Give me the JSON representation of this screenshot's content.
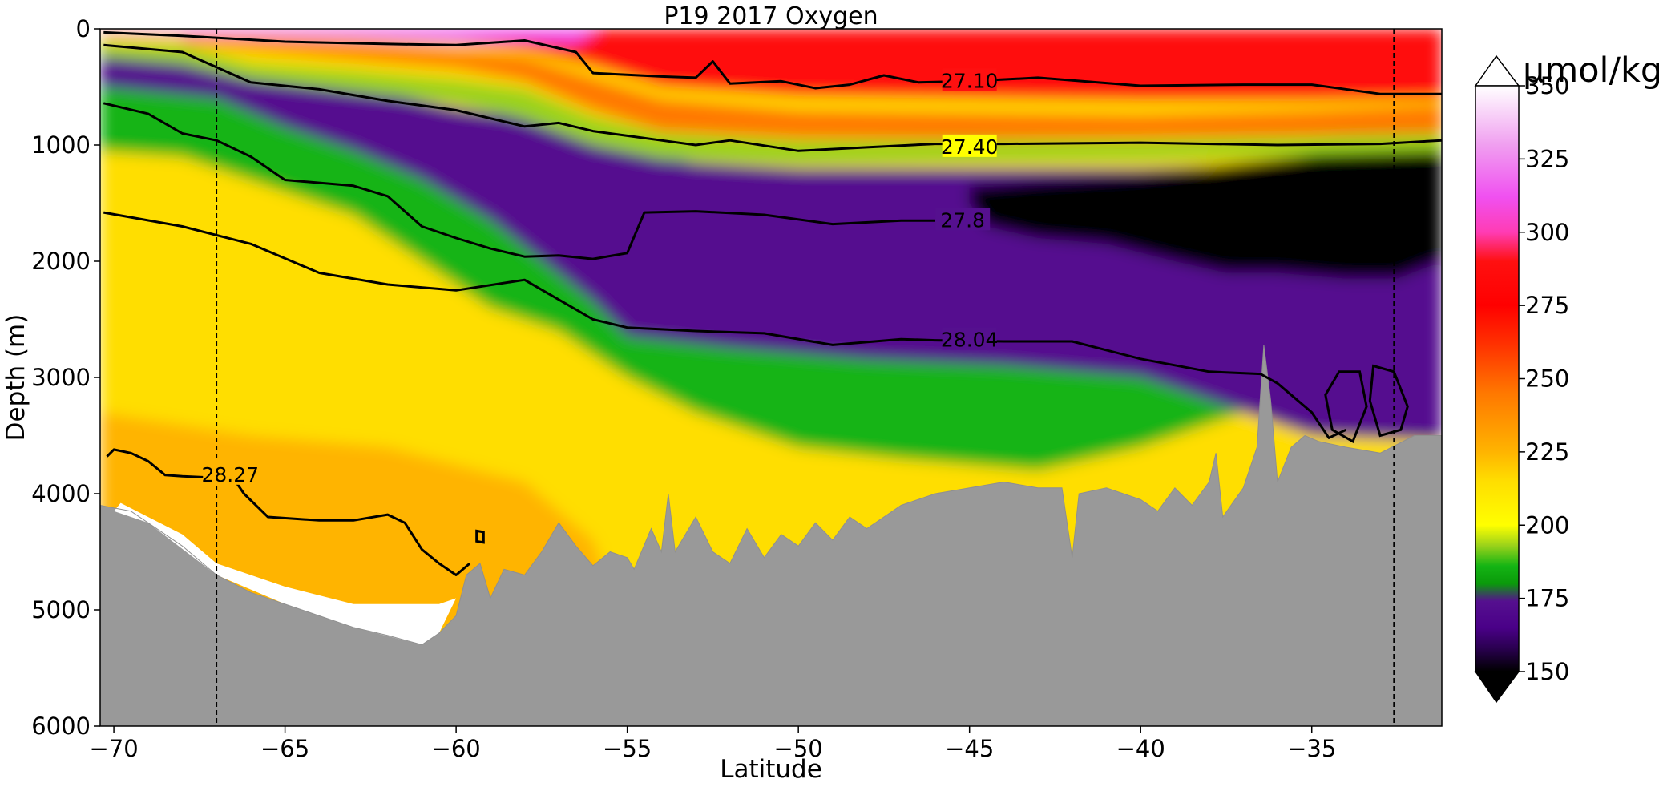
{
  "chart_data": {
    "type": "heatmap",
    "subtype": "ocean-section-contour",
    "title": "P19 2017 Oxygen",
    "xlabel": "Latitude",
    "ylabel": "Depth (m)",
    "xlim": [
      -70.4,
      -31.2
    ],
    "ylim": [
      6000,
      0
    ],
    "y_inverted": true,
    "xticks": [
      -70,
      -65,
      -60,
      -55,
      -50,
      -45,
      -40,
      -35
    ],
    "xtick_labels": [
      "−70",
      "−65",
      "−60",
      "−55",
      "−50",
      "−45",
      "−40",
      "−35"
    ],
    "yticks": [
      0,
      1000,
      2000,
      3000,
      4000,
      5000,
      6000
    ],
    "ytick_labels": [
      "0",
      "1000",
      "2000",
      "3000",
      "4000",
      "5000",
      "6000"
    ],
    "colorbar": {
      "unit": "µmol/kg",
      "range": [
        150,
        350
      ],
      "extend": "both",
      "ticks": [
        150,
        175,
        200,
        225,
        250,
        275,
        300,
        325,
        350
      ],
      "tick_labels": [
        "150",
        "175",
        "200",
        "225",
        "250",
        "275",
        "300",
        "325",
        "350"
      ],
      "stops": [
        {
          "value": 150,
          "color": "#000000"
        },
        {
          "value": 158,
          "color": "#2a0050"
        },
        {
          "value": 165,
          "color": "#4a0088"
        },
        {
          "value": 174,
          "color": "#55108f"
        },
        {
          "value": 180,
          "color": "#0a9a0a"
        },
        {
          "value": 186,
          "color": "#14b414"
        },
        {
          "value": 193,
          "color": "#9ad21a"
        },
        {
          "value": 200,
          "color": "#ffff00"
        },
        {
          "value": 215,
          "color": "#ffde00"
        },
        {
          "value": 225,
          "color": "#ffb400"
        },
        {
          "value": 245,
          "color": "#ff7800"
        },
        {
          "value": 262,
          "color": "#ff3000"
        },
        {
          "value": 275,
          "color": "#ff0000"
        },
        {
          "value": 290,
          "color": "#ff1010"
        },
        {
          "value": 300,
          "color": "#ff3cb4"
        },
        {
          "value": 312,
          "color": "#f050f0"
        },
        {
          "value": 330,
          "color": "#f0a0f0"
        },
        {
          "value": 350,
          "color": "#ffffff"
        }
      ]
    },
    "reference_lines": [
      {
        "type": "vertical",
        "x": -67.0,
        "style": "dashed"
      },
      {
        "type": "vertical",
        "x": -32.6,
        "style": "dashed"
      }
    ],
    "contours": [
      {
        "label": "27.10",
        "label_x": -45.0,
        "label_y": 450,
        "points": [
          [
            -70.3,
            30
          ],
          [
            -68,
            60
          ],
          [
            -65,
            110
          ],
          [
            -62,
            130
          ],
          [
            -60,
            140
          ],
          [
            -58,
            100
          ],
          [
            -56.5,
            200
          ],
          [
            -56,
            380
          ],
          [
            -54,
            410
          ],
          [
            -53,
            420
          ],
          [
            -52.5,
            280
          ],
          [
            -52,
            470
          ],
          [
            -50.5,
            450
          ],
          [
            -49.5,
            510
          ],
          [
            -48.5,
            480
          ],
          [
            -47.5,
            400
          ],
          [
            -46.5,
            460
          ],
          [
            -45,
            450
          ],
          [
            -43,
            420
          ],
          [
            -40,
            490
          ],
          [
            -37,
            480
          ],
          [
            -35,
            480
          ],
          [
            -33,
            560
          ],
          [
            -31.2,
            560
          ]
        ]
      },
      {
        "label": "27.40",
        "label_x": -45.0,
        "label_y": 1020,
        "points": [
          [
            -70.3,
            140
          ],
          [
            -68,
            200
          ],
          [
            -66,
            460
          ],
          [
            -64,
            520
          ],
          [
            -62,
            620
          ],
          [
            -60,
            700
          ],
          [
            -58,
            840
          ],
          [
            -57,
            810
          ],
          [
            -56,
            880
          ],
          [
            -55,
            920
          ],
          [
            -54,
            960
          ],
          [
            -53,
            1000
          ],
          [
            -52,
            960
          ],
          [
            -50,
            1050
          ],
          [
            -48,
            1020
          ],
          [
            -46,
            990
          ],
          [
            -44,
            990
          ],
          [
            -40,
            980
          ],
          [
            -36,
            1000
          ],
          [
            -33,
            990
          ],
          [
            -31.2,
            960
          ]
        ]
      },
      {
        "label": "27.8",
        "label_x": -45.2,
        "label_y": 1650,
        "points": [
          [
            -70.3,
            640
          ],
          [
            -69,
            730
          ],
          [
            -68,
            900
          ],
          [
            -67,
            960
          ],
          [
            -66,
            1100
          ],
          [
            -65,
            1300
          ],
          [
            -63,
            1350
          ],
          [
            -62,
            1440
          ],
          [
            -61,
            1700
          ],
          [
            -60,
            1800
          ],
          [
            -59,
            1890
          ],
          [
            -58,
            1960
          ],
          [
            -57,
            1950
          ],
          [
            -56,
            1980
          ],
          [
            -55,
            1930
          ],
          [
            -54.5,
            1580
          ],
          [
            -53,
            1570
          ],
          [
            -51,
            1600
          ],
          [
            -49,
            1680
          ],
          [
            -47,
            1650
          ],
          [
            -46,
            1650
          ]
        ]
      },
      {
        "label": "28.04",
        "label_x": -45.0,
        "label_y": 2680,
        "points": [
          [
            -70.3,
            1580
          ],
          [
            -68,
            1700
          ],
          [
            -66,
            1850
          ],
          [
            -64,
            2100
          ],
          [
            -62,
            2200
          ],
          [
            -60,
            2250
          ],
          [
            -58,
            2160
          ],
          [
            -56,
            2500
          ],
          [
            -55,
            2570
          ],
          [
            -53,
            2600
          ],
          [
            -51,
            2620
          ],
          [
            -49,
            2720
          ],
          [
            -47,
            2670
          ],
          [
            -46,
            2680
          ],
          [
            -44,
            2690
          ],
          [
            -42,
            2690
          ],
          [
            -40,
            2840
          ],
          [
            -38,
            2950
          ],
          [
            -36.5,
            2970
          ],
          [
            -36,
            3050
          ],
          [
            -35,
            3300
          ],
          [
            -34.5,
            3520
          ],
          [
            -34,
            3450
          ]
        ]
      },
      {
        "label": "28.27",
        "label_x": -66.6,
        "label_y": 3840,
        "points": [
          [
            -70.2,
            3680
          ],
          [
            -70,
            3620
          ],
          [
            -69.5,
            3650
          ],
          [
            -69,
            3720
          ],
          [
            -68.5,
            3840
          ],
          [
            -68,
            3850
          ],
          [
            -66.5,
            3870
          ],
          [
            -66.2,
            4000
          ],
          [
            -65.5,
            4200
          ],
          [
            -64,
            4230
          ],
          [
            -63,
            4230
          ],
          [
            -62,
            4180
          ],
          [
            -61.5,
            4250
          ],
          [
            -61,
            4480
          ],
          [
            -60.5,
            4600
          ],
          [
            -60,
            4700
          ],
          [
            -59.6,
            4600
          ]
        ]
      }
    ]
  }
}
